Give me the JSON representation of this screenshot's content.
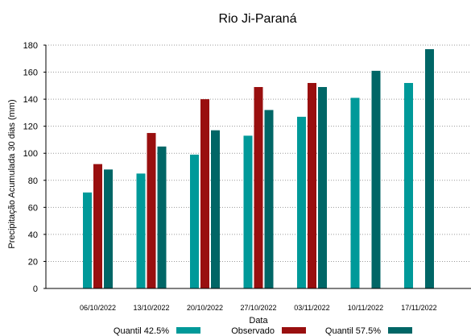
{
  "chart_data": {
    "type": "bar",
    "title": "Rio Ji-Paraná",
    "xlabel": "Data",
    "ylabel": "Precipitação Acumulada 30 dias (mm)",
    "ylim": [
      0,
      180
    ],
    "yticks": [
      0,
      20,
      40,
      60,
      80,
      100,
      120,
      140,
      160,
      180
    ],
    "grid": true,
    "legend_position": "bottom",
    "categories": [
      "06/10/2022",
      "13/10/2022",
      "20/10/2022",
      "27/10/2022",
      "03/11/2022",
      "10/11/2022",
      "17/11/2022"
    ],
    "series": [
      {
        "name": "Quantil 42.5%",
        "color": "#009999",
        "values": [
          71,
          85,
          99,
          113,
          127,
          141,
          152
        ]
      },
      {
        "name": "Observado",
        "color": "#990f0f",
        "values": [
          92,
          115,
          140,
          149,
          152,
          null,
          null
        ]
      },
      {
        "name": "Quantil 57.5%",
        "color": "#006666",
        "values": [
          88,
          105,
          117,
          132,
          149,
          161,
          177
        ]
      }
    ]
  }
}
